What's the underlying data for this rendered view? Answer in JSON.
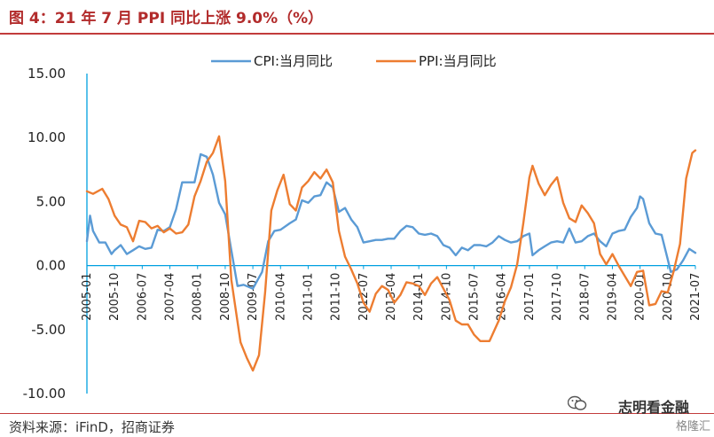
{
  "header": {
    "title": "图 4：21 年 7 月 PPI 同比上涨 9.0%（%）"
  },
  "footer": {
    "source": "资料来源：iFinD，招商证券",
    "watermark": "志明看金融",
    "watermark2": "格隆汇"
  },
  "colors": {
    "cpi": "#5b9bd5",
    "ppi": "#ed7d31",
    "accent": "#c23c3c",
    "axis": "#00a0e0"
  },
  "chart_data": {
    "type": "line",
    "title": "",
    "xlabel": "",
    "ylabel": "",
    "ylim": [
      -10,
      15
    ],
    "yticks": [
      "15.00",
      "10.00",
      "5.00",
      "0.00",
      "-5.00",
      "-10.00"
    ],
    "ytick_values": [
      15,
      10,
      5,
      0,
      -5,
      -10
    ],
    "x_tick_labels": [
      "2005-01",
      "2005-10",
      "2006-07",
      "2007-04",
      "2008-01",
      "2008-10",
      "2009-07",
      "2010-04",
      "2011-01",
      "2011-10",
      "2012-07",
      "2013-04",
      "2014-01",
      "2014-10",
      "2015-07",
      "2016-04",
      "2017-01",
      "2017-10",
      "2018-07",
      "2019-04",
      "2020-01",
      "2020-10",
      "2021-07"
    ],
    "x_start": "2005-01",
    "x_end": "2021-07",
    "legend_position": "top",
    "grid": false,
    "series": [
      {
        "name": "CPI:当月同比",
        "color": "#5b9bd5",
        "x": [
          "2005-01",
          "2005-02",
          "2005-03",
          "2005-05",
          "2005-07",
          "2005-09",
          "2005-10",
          "2005-12",
          "2006-02",
          "2006-04",
          "2006-06",
          "2006-08",
          "2006-10",
          "2006-12",
          "2007-02",
          "2007-04",
          "2007-06",
          "2007-08",
          "2007-10",
          "2007-12",
          "2008-02",
          "2008-04",
          "2008-06",
          "2008-08",
          "2008-10",
          "2008-12",
          "2009-02",
          "2009-04",
          "2009-07",
          "2009-10",
          "2009-12",
          "2010-02",
          "2010-04",
          "2010-07",
          "2010-09",
          "2010-11",
          "2011-01",
          "2011-03",
          "2011-05",
          "2011-07",
          "2011-09",
          "2011-11",
          "2012-01",
          "2012-03",
          "2012-05",
          "2012-07",
          "2012-09",
          "2012-11",
          "2013-01",
          "2013-03",
          "2013-05",
          "2013-07",
          "2013-09",
          "2013-11",
          "2014-01",
          "2014-03",
          "2014-05",
          "2014-07",
          "2014-09",
          "2014-11",
          "2015-01",
          "2015-03",
          "2015-05",
          "2015-07",
          "2015-09",
          "2015-11",
          "2016-01",
          "2016-03",
          "2016-05",
          "2016-07",
          "2016-09",
          "2016-11",
          "2017-01",
          "2017-02",
          "2017-04",
          "2017-06",
          "2017-08",
          "2017-10",
          "2017-12",
          "2018-02",
          "2018-04",
          "2018-06",
          "2018-08",
          "2018-10",
          "2018-12",
          "2019-02",
          "2019-04",
          "2019-06",
          "2019-08",
          "2019-10",
          "2019-12",
          "2020-01",
          "2020-02",
          "2020-04",
          "2020-06",
          "2020-08",
          "2020-10",
          "2020-11",
          "2021-01",
          "2021-03",
          "2021-05",
          "2021-07"
        ],
        "values": [
          1.9,
          3.9,
          2.7,
          1.8,
          1.8,
          0.9,
          1.2,
          1.6,
          0.9,
          1.2,
          1.5,
          1.3,
          1.4,
          2.8,
          2.7,
          3.0,
          4.4,
          6.5,
          6.5,
          6.5,
          8.7,
          8.5,
          7.1,
          4.9,
          4.0,
          1.2,
          -1.6,
          -1.5,
          -1.8,
          -0.5,
          1.9,
          2.7,
          2.8,
          3.3,
          3.6,
          5.1,
          4.9,
          5.4,
          5.5,
          6.5,
          6.1,
          4.2,
          4.5,
          3.6,
          3.0,
          1.8,
          1.9,
          2.0,
          2.0,
          2.1,
          2.1,
          2.7,
          3.1,
          3.0,
          2.5,
          2.4,
          2.5,
          2.3,
          1.6,
          1.4,
          0.8,
          1.4,
          1.2,
          1.6,
          1.6,
          1.5,
          1.8,
          2.3,
          2.0,
          1.8,
          1.9,
          2.3,
          2.5,
          0.8,
          1.2,
          1.5,
          1.8,
          1.9,
          1.8,
          2.9,
          1.8,
          1.9,
          2.3,
          2.5,
          1.9,
          1.5,
          2.5,
          2.7,
          2.8,
          3.8,
          4.5,
          5.4,
          5.2,
          3.3,
          2.5,
          2.4,
          0.5,
          -0.5,
          -0.3,
          0.4,
          1.3,
          1.0
        ]
      },
      {
        "name": "PPI:当月同比",
        "color": "#ed7d31",
        "x": [
          "2005-01",
          "2005-03",
          "2005-06",
          "2005-08",
          "2005-10",
          "2005-12",
          "2006-02",
          "2006-04",
          "2006-06",
          "2006-08",
          "2006-10",
          "2006-12",
          "2007-02",
          "2007-04",
          "2007-06",
          "2007-08",
          "2007-10",
          "2007-12",
          "2008-02",
          "2008-04",
          "2008-06",
          "2008-08",
          "2008-10",
          "2008-12",
          "2009-03",
          "2009-05",
          "2009-07",
          "2009-09",
          "2009-11",
          "2010-01",
          "2010-03",
          "2010-05",
          "2010-07",
          "2010-09",
          "2010-11",
          "2011-01",
          "2011-03",
          "2011-05",
          "2011-07",
          "2011-09",
          "2011-11",
          "2012-01",
          "2012-03",
          "2012-05",
          "2012-07",
          "2012-09",
          "2012-11",
          "2013-01",
          "2013-03",
          "2013-05",
          "2013-07",
          "2013-09",
          "2013-11",
          "2014-01",
          "2014-03",
          "2014-05",
          "2014-07",
          "2014-09",
          "2014-11",
          "2015-01",
          "2015-03",
          "2015-05",
          "2015-07",
          "2015-09",
          "2015-12",
          "2016-03",
          "2016-05",
          "2016-07",
          "2016-09",
          "2016-11",
          "2017-01",
          "2017-02",
          "2017-04",
          "2017-06",
          "2017-08",
          "2017-10",
          "2017-12",
          "2018-02",
          "2018-04",
          "2018-06",
          "2018-08",
          "2018-10",
          "2018-12",
          "2019-02",
          "2019-04",
          "2019-06",
          "2019-08",
          "2019-10",
          "2019-12",
          "2020-02",
          "2020-04",
          "2020-06",
          "2020-08",
          "2020-10",
          "2020-12",
          "2021-02",
          "2021-04",
          "2021-06",
          "2021-07"
        ],
        "values": [
          5.8,
          5.6,
          6.0,
          5.2,
          3.9,
          3.2,
          3.0,
          1.9,
          3.5,
          3.4,
          2.9,
          3.1,
          2.6,
          2.9,
          2.5,
          2.6,
          3.2,
          5.4,
          6.6,
          8.1,
          8.8,
          10.1,
          6.6,
          -1.1,
          -6.0,
          -7.2,
          -8.2,
          -7.0,
          -2.1,
          4.3,
          5.9,
          7.1,
          4.8,
          4.3,
          6.1,
          6.6,
          7.3,
          6.8,
          7.5,
          6.5,
          2.7,
          0.7,
          -0.3,
          -1.4,
          -2.9,
          -3.6,
          -2.2,
          -1.6,
          -1.9,
          -2.9,
          -2.3,
          -1.3,
          -1.4,
          -1.6,
          -2.3,
          -1.4,
          -0.9,
          -1.8,
          -2.7,
          -4.3,
          -4.6,
          -4.6,
          -5.4,
          -5.9,
          -5.9,
          -4.3,
          -2.8,
          -1.7,
          0.1,
          3.3,
          6.9,
          7.8,
          6.4,
          5.5,
          6.3,
          6.9,
          4.9,
          3.7,
          3.4,
          4.7,
          4.1,
          3.3,
          0.9,
          0.1,
          0.9,
          0.0,
          -0.8,
          -1.6,
          -0.5,
          -0.4,
          -3.1,
          -3.0,
          -2.0,
          -2.1,
          -0.4,
          1.7,
          6.8,
          8.8,
          9.0
        ]
      }
    ]
  }
}
